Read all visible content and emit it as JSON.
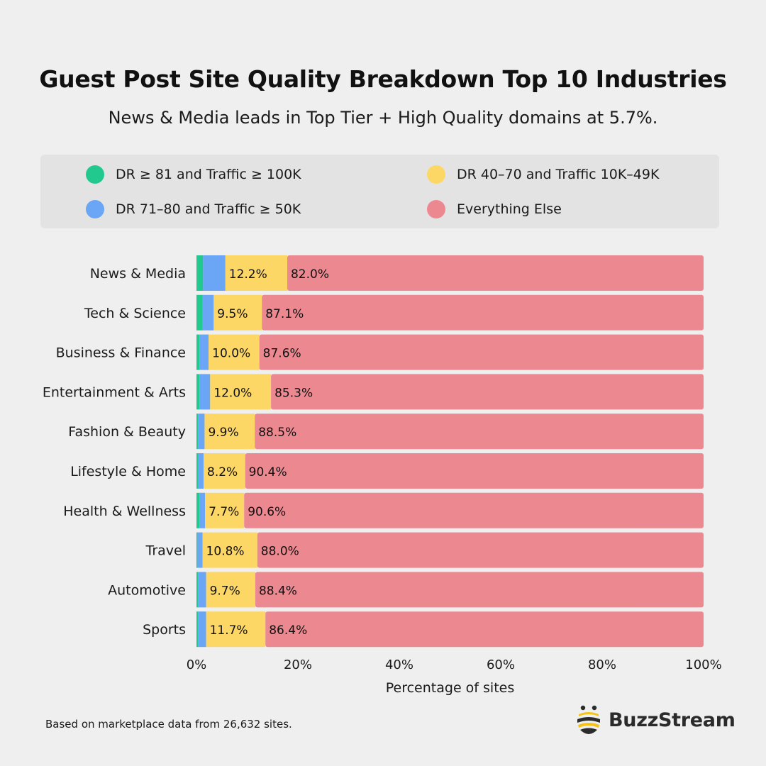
{
  "header": {
    "title": "Guest Post Site Quality Breakdown Top 10 Industries",
    "subtitle": "News & Media leads in Top Tier + High Quality domains at 5.7%."
  },
  "footnote": "Based on marketplace data from 26,632 sites.",
  "brand": {
    "name": "BuzzStream",
    "icon": "bee-logo-icon"
  },
  "chart_data": {
    "type": "bar",
    "orientation": "horizontal",
    "stacked": true,
    "xlabel": "Percentage of sites",
    "xlim": [
      0,
      100
    ],
    "xticks": [
      "0%",
      "20%",
      "40%",
      "60%",
      "80%",
      "100%"
    ],
    "legend_position": "top",
    "categories": [
      "News & Media",
      "Tech & Science",
      "Business & Finance",
      "Entertainment & Arts",
      "Fashion & Beauty",
      "Lifestyle & Home",
      "Health & Wellness",
      "Travel",
      "Automotive",
      "Sports"
    ],
    "series": [
      {
        "name": "DR ≥ 81 and Traffic ≥ 100K",
        "color": "#22c98f",
        "values": [
          1.3,
          1.2,
          0.6,
          0.6,
          0.3,
          0.4,
          0.6,
          0.2,
          0.3,
          0.3
        ],
        "labels": [
          "",
          "",
          "",
          "",
          "",
          "",
          "",
          "",
          "",
          ""
        ]
      },
      {
        "name": "DR 71–80 and Traffic ≥ 50K",
        "color": "#6aa6f5",
        "values": [
          4.4,
          2.2,
          1.8,
          2.1,
          1.3,
          1.0,
          1.1,
          1.0,
          1.6,
          1.6
        ],
        "labels": [
          "",
          "",
          "",
          "",
          "",
          "",
          "",
          "",
          "",
          ""
        ]
      },
      {
        "name": "DR 40–70 and Traffic 10K–49K",
        "color": "#fdd765",
        "values": [
          12.2,
          9.5,
          10.0,
          12.0,
          9.9,
          8.2,
          7.7,
          10.8,
          9.7,
          11.7
        ],
        "labels": [
          "12.2%",
          "9.5%",
          "10.0%",
          "12.0%",
          "9.9%",
          "8.2%",
          "7.7%",
          "10.8%",
          "9.7%",
          "11.7%"
        ]
      },
      {
        "name": "Everything Else",
        "color": "#ec8890",
        "values": [
          82.0,
          87.1,
          87.6,
          85.3,
          88.5,
          90.4,
          90.6,
          88.0,
          88.4,
          86.4
        ],
        "labels": [
          "82.0%",
          "87.1%",
          "87.6%",
          "85.3%",
          "88.5%",
          "90.4%",
          "90.6%",
          "88.0%",
          "88.4%",
          "86.4%"
        ]
      }
    ]
  }
}
